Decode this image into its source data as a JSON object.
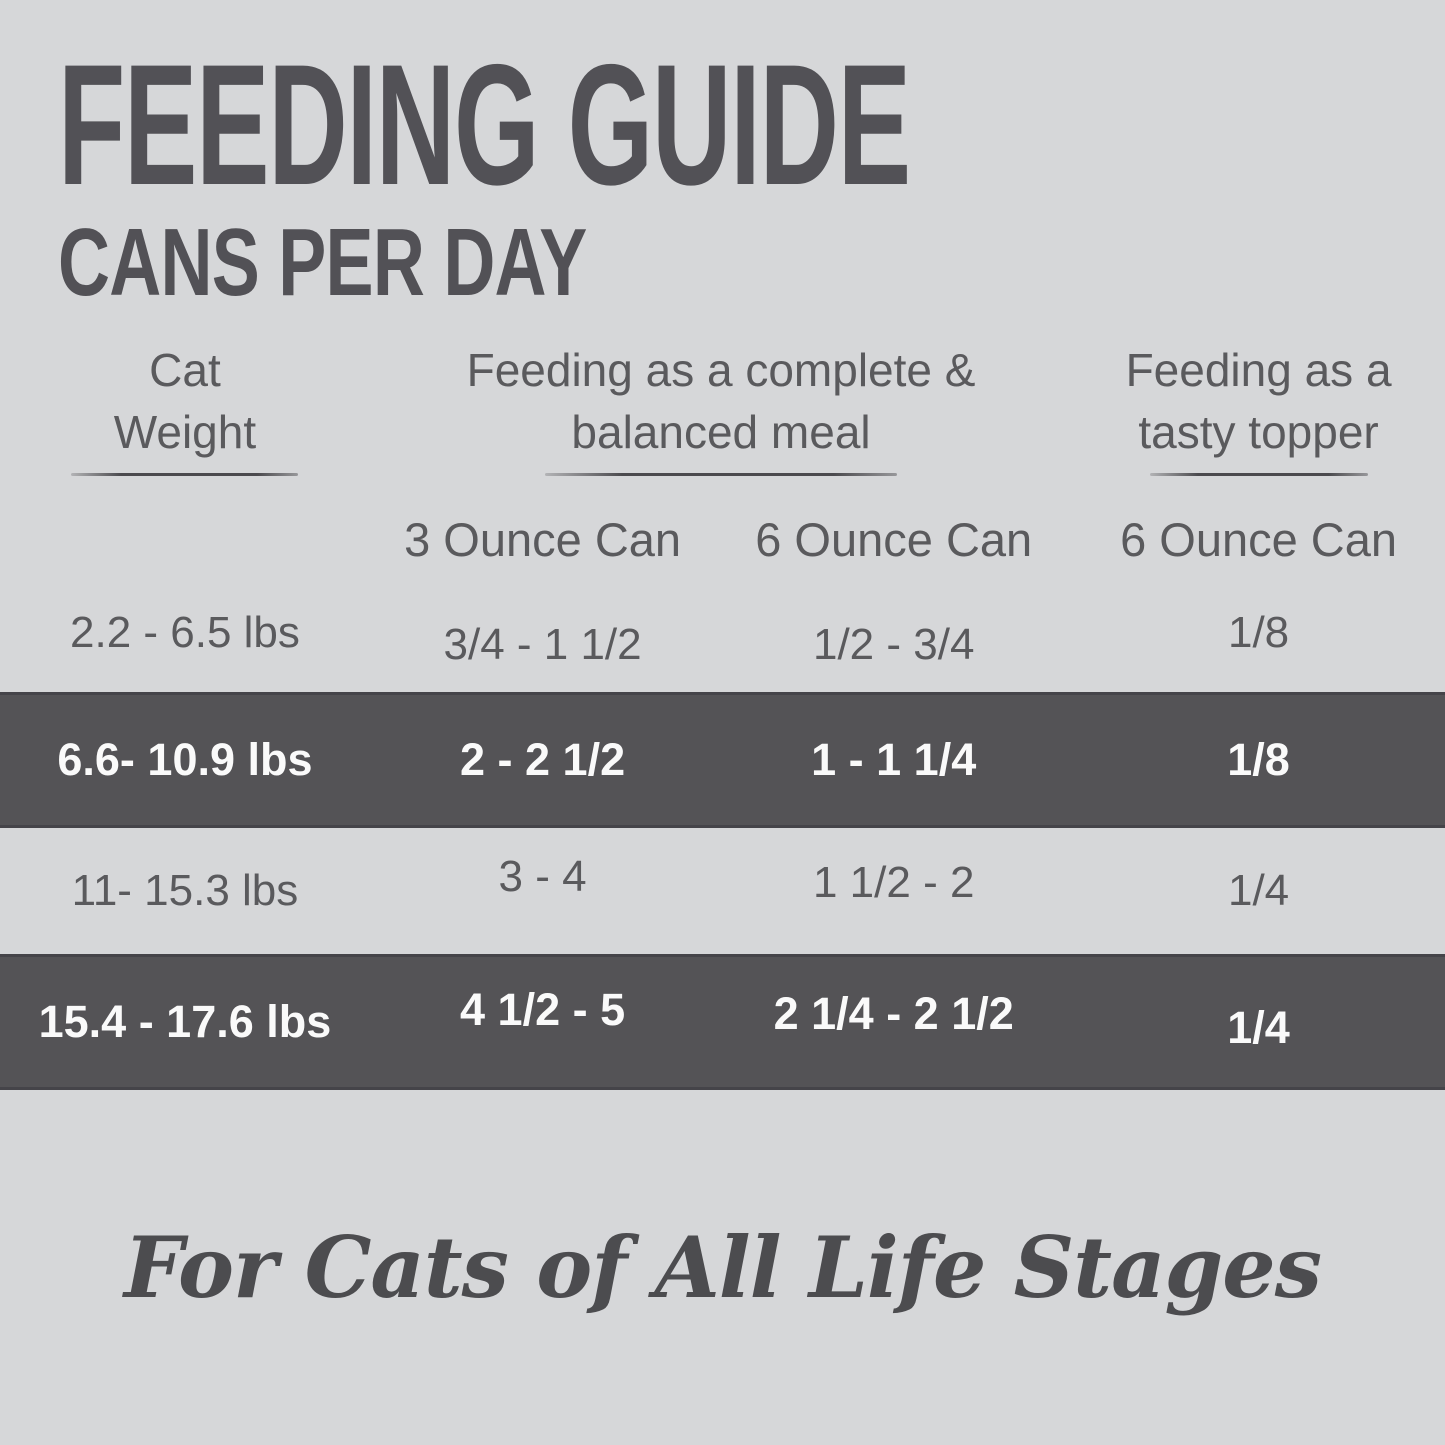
{
  "title": "FEEDING GUIDE",
  "subtitle": "CANS PER DAY",
  "table": {
    "column_groups": [
      {
        "label_lines": [
          "Cat",
          "Weight"
        ]
      },
      {
        "label_lines": [
          "Feeding as a complete &",
          "balanced meal"
        ]
      },
      {
        "label_lines": [
          "Feeding as a",
          "tasty topper"
        ]
      }
    ],
    "sub_headers": [
      "3 Ounce Can",
      "6 Ounce Can",
      "6 Ounce Can"
    ],
    "rows": [
      {
        "weight": "2.2 - 6.5 lbs",
        "meal_3oz": "3/4 - 1 1/2",
        "meal_6oz": "1/2 - 3/4",
        "topper_6oz": "1/8",
        "highlighted": false
      },
      {
        "weight": "6.6- 10.9 lbs",
        "meal_3oz": "2 - 2 1/2",
        "meal_6oz": "1 - 1 1/4",
        "topper_6oz": "1/8",
        "highlighted": true
      },
      {
        "weight": "11- 15.3 lbs",
        "meal_3oz": "3 - 4",
        "meal_6oz": "1 1/2 - 2",
        "topper_6oz": "1/4",
        "highlighted": false
      },
      {
        "weight": "15.4 - 17.6 lbs",
        "meal_3oz": "4 1/2 - 5",
        "meal_6oz": "2 1/4 - 2 1/2",
        "topper_6oz": "1/4",
        "highlighted": true
      }
    ]
  },
  "footer": {
    "tagline": "For Cats of All Life Stages"
  },
  "colors": {
    "background": "#d6d7d9",
    "row_highlight": "#545356",
    "row_highlight_edge": "#454449",
    "text": "#5a5a5d",
    "text_on_dark": "#fafafa",
    "title": "#525156",
    "rule": "#4b4a4e",
    "tagline": "#4c4c4f"
  },
  "chart_data": {
    "type": "table",
    "title": "FEEDING GUIDE — CANS PER DAY",
    "columns": [
      "Cat Weight",
      "Feeding as a complete & balanced meal — 3 Ounce Can",
      "Feeding as a complete & balanced meal — 6 Ounce Can",
      "Feeding as a tasty topper — 6 Ounce Can"
    ],
    "rows": [
      [
        "2.2 - 6.5 lbs",
        "3/4 - 1 1/2",
        "1/2 - 3/4",
        "1/8"
      ],
      [
        "6.6- 10.9 lbs",
        "2 - 2 1/2",
        "1 - 1 1/4",
        "1/8"
      ],
      [
        "11- 15.3 lbs",
        "3 - 4",
        "1 1/2 - 2",
        "1/4"
      ],
      [
        "15.4 - 17.6 lbs",
        "4 1/2 - 5",
        "2 1/4 - 2 1/2",
        "1/4"
      ]
    ],
    "highlighted_rows": [
      1,
      3
    ],
    "footnote": "For Cats of All Life Stages"
  }
}
